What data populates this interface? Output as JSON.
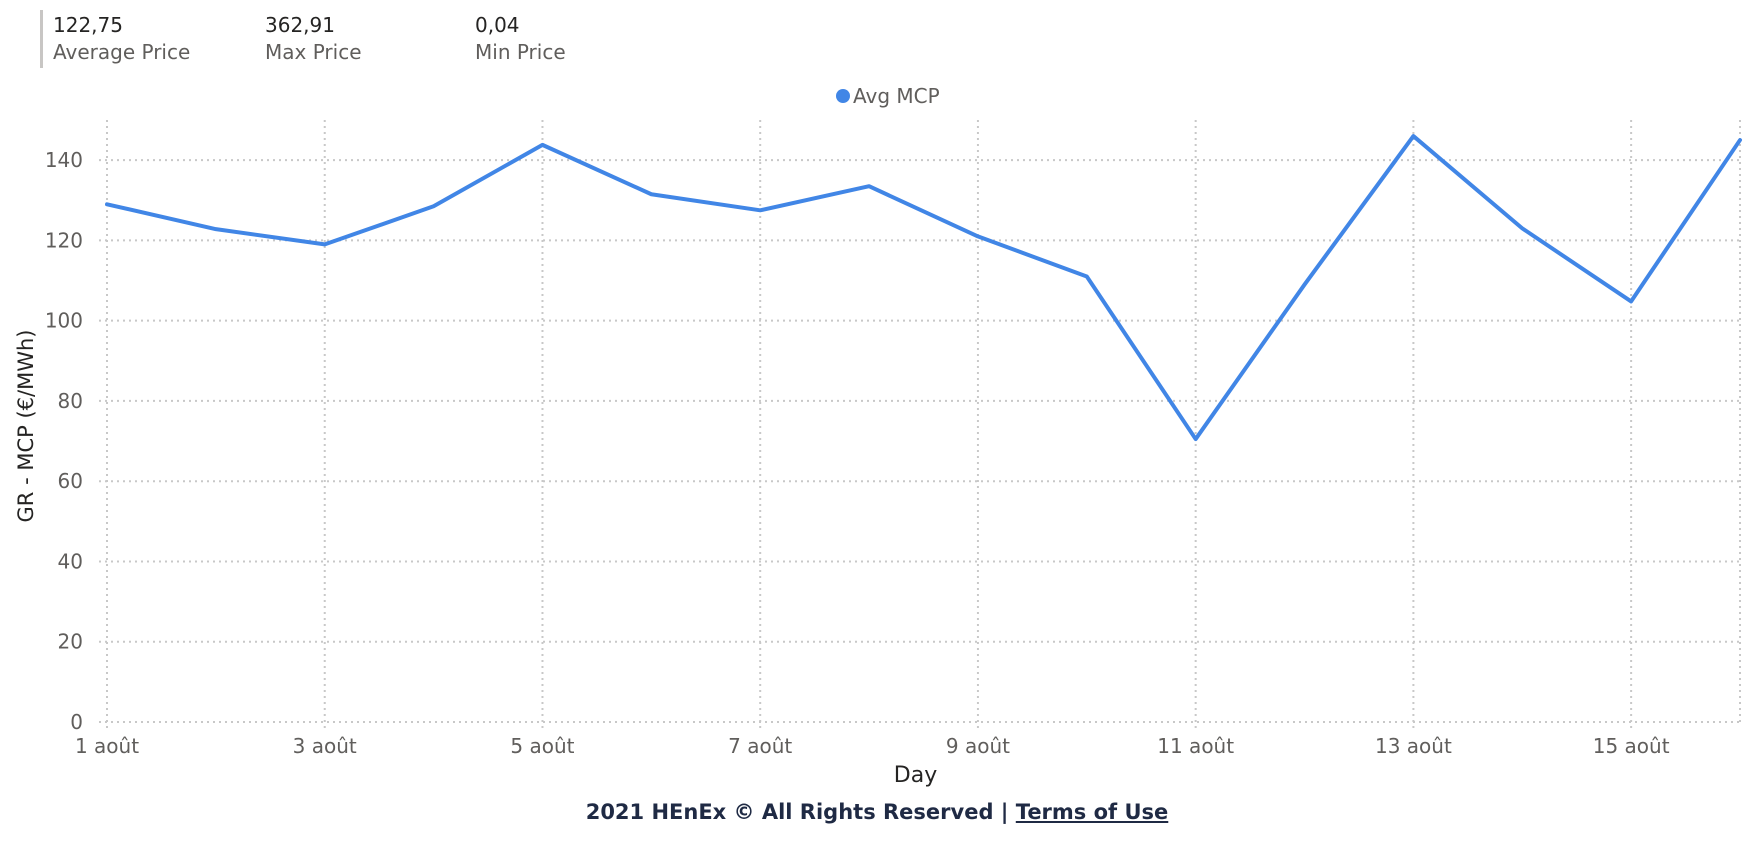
{
  "kpis": [
    {
      "value": "122,75",
      "label": "Average Price"
    },
    {
      "value": "362,91",
      "label": "Max Price"
    },
    {
      "value": "0,04",
      "label": "Min Price"
    }
  ],
  "chart_data": {
    "type": "line",
    "title": "",
    "xlabel": "Day",
    "ylabel": "GR - MCP (€/MWh)",
    "ylim": [
      0,
      150
    ],
    "yticks": [
      0,
      20,
      40,
      60,
      80,
      100,
      120,
      140
    ],
    "x": [
      1,
      2,
      3,
      4,
      5,
      6,
      7,
      8,
      9,
      10,
      11,
      12,
      13,
      14,
      15,
      16
    ],
    "xticks": [
      {
        "x": 1,
        "label": "1 août"
      },
      {
        "x": 3,
        "label": "3 août"
      },
      {
        "x": 5,
        "label": "5 août"
      },
      {
        "x": 7,
        "label": "7 août"
      },
      {
        "x": 9,
        "label": "9 août"
      },
      {
        "x": 11,
        "label": "11 août"
      },
      {
        "x": 13,
        "label": "13 août"
      },
      {
        "x": 15,
        "label": "15 août"
      }
    ],
    "series": [
      {
        "name": "Avg MCP",
        "color": "#4186e6",
        "values": [
          129,
          122.8,
          119,
          128.5,
          143.8,
          131.5,
          127.5,
          133.5,
          121,
          111,
          70.5,
          109,
          146,
          123,
          104.8,
          145
        ]
      }
    ],
    "legend_position": "top-center",
    "grid": true
  },
  "footer": {
    "text": "2021 HEnEx © All Rights Reserved | ",
    "link": "Terms of Use"
  }
}
